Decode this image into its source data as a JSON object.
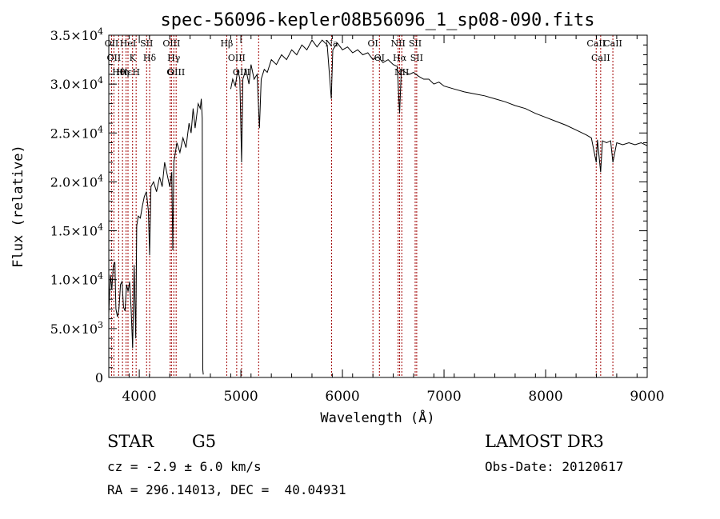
{
  "chart_data": {
    "type": "line",
    "title": "spec-56096-kepler08B56096_1_sp08-090.fits",
    "xlabel": "Wavelength (Å)",
    "ylabel": "Flux (relative)",
    "xlim": [
      3700,
      9000
    ],
    "ylim": [
      0,
      35000
    ],
    "xticks": [
      {
        "value": 4000,
        "label": "4000"
      },
      {
        "value": 5000,
        "label": "5000"
      },
      {
        "value": 6000,
        "label": "6000"
      },
      {
        "value": 7000,
        "label": "7000"
      },
      {
        "value": 8000,
        "label": "8000"
      },
      {
        "value": 9000,
        "label": "9000"
      }
    ],
    "yticks": [
      {
        "value": 0,
        "mant": "0",
        "exp": ""
      },
      {
        "value": 5000,
        "mant": "5.0×10",
        "exp": "3"
      },
      {
        "value": 10000,
        "mant": "1.0×10",
        "exp": "4"
      },
      {
        "value": 15000,
        "mant": "1.5×10",
        "exp": "4"
      },
      {
        "value": 20000,
        "mant": "2.0×10",
        "exp": "4"
      },
      {
        "value": 25000,
        "mant": "2.5×10",
        "exp": "4"
      },
      {
        "value": 30000,
        "mant": "3.0×10",
        "exp": "4"
      },
      {
        "value": 35000,
        "mant": "3.5×10",
        "exp": "4"
      }
    ],
    "grid": false,
    "line_color": "#000000",
    "marker_line_color": "#a00000",
    "series": [
      {
        "points": [
          [
            3700,
            6500
          ],
          [
            3715,
            10500
          ],
          [
            3730,
            9000
          ],
          [
            3745,
            11500
          ],
          [
            3760,
            11800
          ],
          [
            3770,
            7000
          ],
          [
            3785,
            6200
          ],
          [
            3800,
            7000
          ],
          [
            3815,
            9500
          ],
          [
            3830,
            9800
          ],
          [
            3845,
            7200
          ],
          [
            3860,
            6800
          ],
          [
            3875,
            9500
          ],
          [
            3890,
            8800
          ],
          [
            3905,
            9800
          ],
          [
            3920,
            7000
          ],
          [
            3935,
            3000
          ],
          [
            3950,
            11500
          ],
          [
            3965,
            4000
          ],
          [
            3975,
            15500
          ],
          [
            3990,
            16500
          ],
          [
            4010,
            16300
          ],
          [
            4030,
            17500
          ],
          [
            4050,
            18500
          ],
          [
            4070,
            19000
          ],
          [
            4090,
            17000
          ],
          [
            4102,
            12500
          ],
          [
            4115,
            19500
          ],
          [
            4140,
            20000
          ],
          [
            4170,
            19000
          ],
          [
            4200,
            20500
          ],
          [
            4225,
            19500
          ],
          [
            4250,
            22000
          ],
          [
            4280,
            20500
          ],
          [
            4300,
            19500
          ],
          [
            4320,
            21000
          ],
          [
            4330,
            13000
          ],
          [
            4340,
            22000
          ],
          [
            4370,
            24000
          ],
          [
            4400,
            23000
          ],
          [
            4430,
            24500
          ],
          [
            4460,
            23500
          ],
          [
            4490,
            26000
          ],
          [
            4510,
            25000
          ],
          [
            4530,
            27500
          ],
          [
            4550,
            25500
          ],
          [
            4580,
            28000
          ],
          [
            4600,
            27500
          ],
          [
            4610,
            28500
          ],
          [
            4620,
            26500
          ],
          [
            4625,
            800
          ],
          [
            4630,
            300
          ]
        ]
      },
      {
        "points": [
          [
            4900,
            29500
          ],
          [
            4920,
            30500
          ],
          [
            4945,
            29800
          ],
          [
            4970,
            31500
          ],
          [
            4990,
            30500
          ],
          [
            5007,
            22000
          ],
          [
            5020,
            30500
          ],
          [
            5050,
            31500
          ],
          [
            5080,
            30000
          ],
          [
            5100,
            32000
          ],
          [
            5130,
            30500
          ],
          [
            5160,
            31000
          ],
          [
            5183,
            25500
          ],
          [
            5200,
            30500
          ],
          [
            5230,
            31500
          ],
          [
            5260,
            31200
          ],
          [
            5300,
            32500
          ],
          [
            5350,
            32000
          ],
          [
            5400,
            33000
          ],
          [
            5450,
            32500
          ],
          [
            5500,
            33500
          ],
          [
            5550,
            33000
          ],
          [
            5600,
            34000
          ],
          [
            5650,
            33500
          ],
          [
            5700,
            34500
          ],
          [
            5750,
            33800
          ],
          [
            5800,
            34500
          ],
          [
            5850,
            34000
          ],
          [
            5890,
            28500
          ],
          [
            5905,
            33500
          ],
          [
            5950,
            34200
          ],
          [
            6000,
            33500
          ],
          [
            6050,
            33800
          ],
          [
            6100,
            33200
          ],
          [
            6150,
            33500
          ],
          [
            6200,
            33000
          ],
          [
            6250,
            33200
          ],
          [
            6300,
            32500
          ],
          [
            6350,
            32800
          ],
          [
            6400,
            32200
          ],
          [
            6450,
            32500
          ],
          [
            6500,
            32000
          ],
          [
            6540,
            31800
          ],
          [
            6563,
            27000
          ],
          [
            6580,
            31500
          ],
          [
            6620,
            31200
          ],
          [
            6660,
            31000
          ],
          [
            6700,
            31200
          ],
          [
            6750,
            30800
          ],
          [
            6800,
            30500
          ],
          [
            6850,
            30500
          ],
          [
            6900,
            30000
          ],
          [
            6950,
            30200
          ],
          [
            7000,
            29800
          ],
          [
            7100,
            29500
          ],
          [
            7200,
            29200
          ],
          [
            7300,
            29000
          ],
          [
            7400,
            28800
          ],
          [
            7500,
            28500
          ],
          [
            7600,
            28200
          ],
          [
            7700,
            27800
          ],
          [
            7800,
            27500
          ],
          [
            7900,
            27000
          ],
          [
            8000,
            26600
          ],
          [
            8100,
            26200
          ],
          [
            8200,
            25800
          ],
          [
            8300,
            25300
          ],
          [
            8400,
            24800
          ],
          [
            8450,
            24500
          ],
          [
            8498,
            22000
          ],
          [
            8510,
            24300
          ],
          [
            8542,
            21000
          ],
          [
            8560,
            24200
          ],
          [
            8600,
            24000
          ],
          [
            8640,
            24200
          ],
          [
            8662,
            22000
          ],
          [
            8700,
            24000
          ],
          [
            8760,
            23800
          ],
          [
            8820,
            24000
          ],
          [
            8880,
            23800
          ],
          [
            8940,
            24000
          ],
          [
            9000,
            23700
          ]
        ]
      }
    ],
    "lines": [
      {
        "wl": 3727,
        "label": "OII"
      },
      {
        "wl": 3750,
        "label": "OII"
      },
      {
        "wl": 3797,
        "label": "Hθ"
      },
      {
        "wl": 3835,
        "label": "Hη"
      },
      {
        "wl": 3870,
        "label": "Hε"
      },
      {
        "wl": 3889,
        "label": "HeI"
      },
      {
        "wl": 3934,
        "label": "K"
      },
      {
        "wl": 3969,
        "label": "H"
      },
      {
        "wl": 4072,
        "label": "SII"
      },
      {
        "wl": 4102,
        "label": "Hδ"
      },
      {
        "wl": 4317,
        "label": "OIII"
      },
      {
        "wl": 4340,
        "label": "Hγ"
      },
      {
        "wl": 4363,
        "label": "OIII"
      },
      {
        "wl": 4304,
        "label": "G"
      },
      {
        "wl": 4861,
        "label": "Hβ"
      },
      {
        "wl": 4959,
        "label": "OIII"
      },
      {
        "wl": 5007,
        "label": "OIII"
      },
      {
        "wl": 5175,
        "label": ""
      },
      {
        "wl": 5893,
        "label": "Na"
      },
      {
        "wl": 6300,
        "label": "OI"
      },
      {
        "wl": 6364,
        "label": "OI"
      },
      {
        "wl": 6548,
        "label": "NII"
      },
      {
        "wl": 6563,
        "label": "Hα"
      },
      {
        "wl": 6584,
        "label": "NII"
      },
      {
        "wl": 6716,
        "label": "SII"
      },
      {
        "wl": 6731,
        "label": "SII"
      },
      {
        "wl": 8498,
        "label": "CaII"
      },
      {
        "wl": 8542,
        "label": "CaII"
      },
      {
        "wl": 8662,
        "label": "CaII"
      }
    ]
  },
  "info": {
    "class": "STAR",
    "subclass": "G5",
    "cz": "cz = -2.9 ± 6.0 km/s",
    "coords": "RA = 296.14013, DEC =  40.04931",
    "survey": "LAMOST DR3",
    "obsdate": "Obs-Date: 20120617"
  }
}
